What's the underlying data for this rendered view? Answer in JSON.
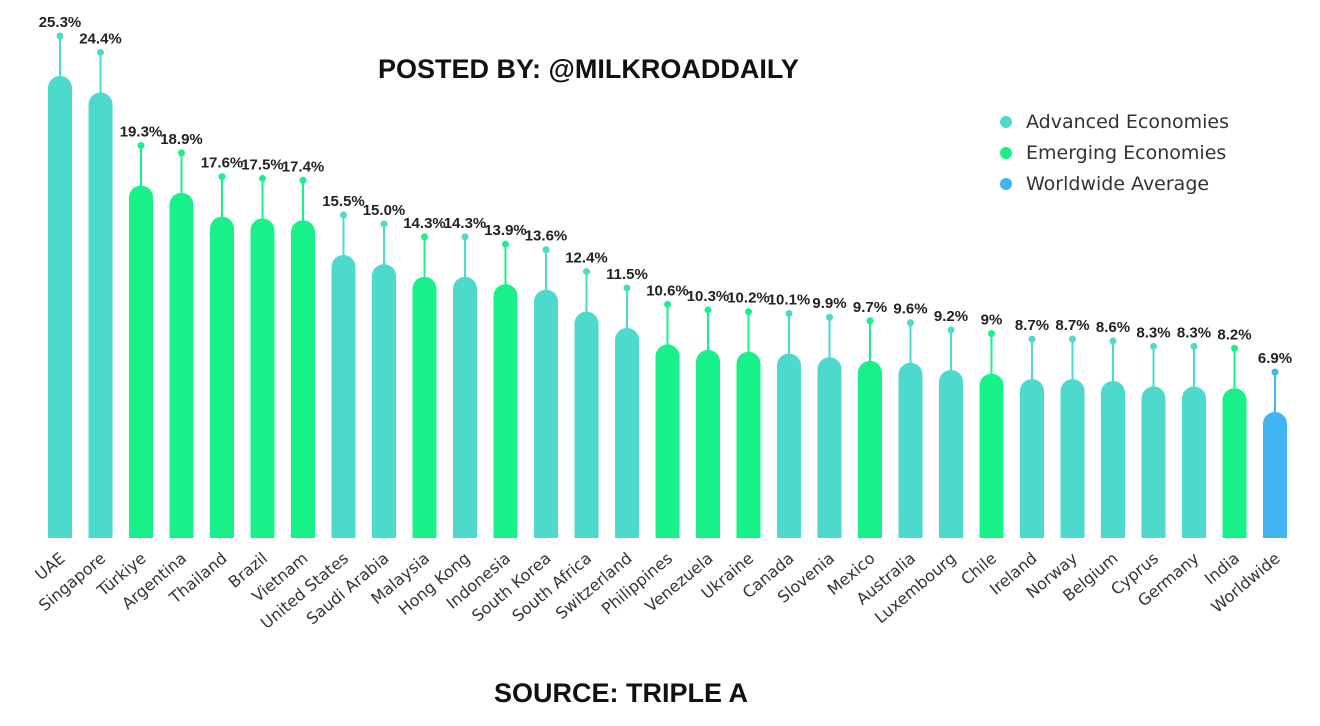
{
  "header": {
    "posted_by": "POSTED BY: @MILKROADDAILY"
  },
  "footer": {
    "source": "SOURCE: TRIPLE A"
  },
  "legend": [
    {
      "label": "Advanced Economies",
      "color": "#4dd9cc"
    },
    {
      "label": "Emerging Economies",
      "color": "#18f08a"
    },
    {
      "label": "Worldwide Average",
      "color": "#42b4f2"
    }
  ],
  "chart_data": {
    "type": "bar",
    "title": "",
    "xlabel": "",
    "ylabel": "",
    "ylim": [
      0,
      25.3
    ],
    "grid": false,
    "legend_position": "top-right",
    "categories": [
      "UAE",
      "Singapore",
      "Türkiye",
      "Argentina",
      "Thailand",
      "Brazil",
      "Vietnam",
      "United States",
      "Saudi Arabia",
      "Malaysia",
      "Hong Kong",
      "Indonesia",
      "South Korea",
      "South Africa",
      "Switzerland",
      "Philippines",
      "Venezuela",
      "Ukraine",
      "Canada",
      "Slovenia",
      "Mexico",
      "Australia",
      "Luxembourg",
      "Chile",
      "Ireland",
      "Norway",
      "Belgium",
      "Cyprus",
      "Germany",
      "India",
      "Worldwide"
    ],
    "values": [
      25.3,
      24.4,
      19.3,
      18.9,
      17.6,
      17.5,
      17.4,
      15.5,
      15.0,
      14.3,
      14.3,
      13.9,
      13.6,
      12.4,
      11.5,
      10.6,
      10.3,
      10.2,
      10.1,
      9.9,
      9.7,
      9.6,
      9.2,
      9,
      8.7,
      8.7,
      8.6,
      8.3,
      8.3,
      8.2,
      6.9
    ],
    "labels": [
      "25.3%",
      "24.4%",
      "19.3%",
      "18.9%",
      "17.6%",
      "17.5%",
      "17.4%",
      "15.5%",
      "15.0%",
      "14.3%",
      "14.3%",
      "13.9%",
      "13.6%",
      "12.4%",
      "11.5%",
      "10.6%",
      "10.3%",
      "10.2%",
      "10.1%",
      "9.9%",
      "9.7%",
      "9.6%",
      "9.2%",
      "9%",
      "8.7%",
      "8.7%",
      "8.6%",
      "8.3%",
      "8.3%",
      "8.2%",
      "6.9%"
    ],
    "groups": [
      "Advanced Economies",
      "Advanced Economies",
      "Emerging Economies",
      "Emerging Economies",
      "Emerging Economies",
      "Emerging Economies",
      "Emerging Economies",
      "Advanced Economies",
      "Advanced Economies",
      "Emerging Economies",
      "Advanced Economies",
      "Emerging Economies",
      "Advanced Economies",
      "Advanced Economies",
      "Advanced Economies",
      "Emerging Economies",
      "Emerging Economies",
      "Emerging Economies",
      "Advanced Economies",
      "Advanced Economies",
      "Emerging Economies",
      "Advanced Economies",
      "Advanced Economies",
      "Emerging Economies",
      "Advanced Economies",
      "Advanced Economies",
      "Advanced Economies",
      "Advanced Economies",
      "Advanced Economies",
      "Emerging Economies",
      "Worldwide Average"
    ]
  }
}
